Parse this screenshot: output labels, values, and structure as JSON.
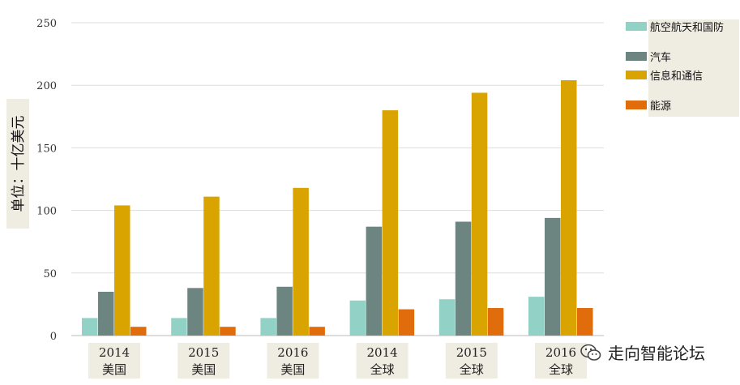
{
  "chart_data": {
    "type": "bar",
    "categories": [
      {
        "year": "2014",
        "region": "美国"
      },
      {
        "year": "2015",
        "region": "美国"
      },
      {
        "year": "2016",
        "region": "美国"
      },
      {
        "year": "2014",
        "region": "全球"
      },
      {
        "year": "2015",
        "region": "全球"
      },
      {
        "year": "2016",
        "region": "全球"
      }
    ],
    "series": [
      {
        "name": "航空航天和国防",
        "color": "#92d1c5",
        "values": [
          14,
          14,
          14,
          28,
          29,
          31
        ]
      },
      {
        "name": "汽车",
        "color": "#6d8580",
        "values": [
          35,
          38,
          39,
          87,
          91,
          94
        ]
      },
      {
        "name": "信息和通信",
        "color": "#d9a300",
        "values": [
          104,
          111,
          118,
          180,
          194,
          204
        ]
      },
      {
        "name": "能源",
        "color": "#e06c0c",
        "values": [
          7,
          7,
          7,
          21,
          22,
          22
        ]
      }
    ],
    "ylabel": "单位：十亿美元",
    "ylim": [
      0,
      250
    ],
    "yticks": [
      0,
      50,
      100,
      150,
      200,
      250
    ],
    "grid": true,
    "legend_position": "top-right"
  },
  "watermark": {
    "text": "走向智能论坛",
    "icon": "wechat-icon"
  }
}
